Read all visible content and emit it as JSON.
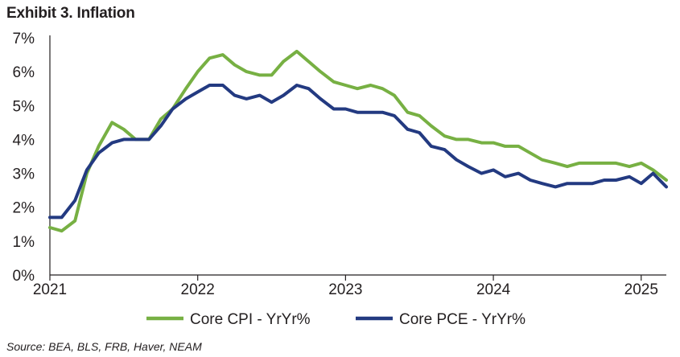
{
  "title": "Exhibit 3. Inflation",
  "source": "Source: BEA, BLS, FRB, Haver, NEAM",
  "chart_data": {
    "type": "line",
    "ylim": [
      0,
      7
    ],
    "yticks": [
      "0%",
      "1%",
      "2%",
      "3%",
      "4%",
      "5%",
      "6%",
      "7%"
    ],
    "xticks": [
      {
        "label": "2021",
        "x": 2021.0
      },
      {
        "label": "2022",
        "x": 2022.0
      },
      {
        "label": "2023",
        "x": 2023.0
      },
      {
        "label": "2024",
        "x": 2024.0
      },
      {
        "label": "2025",
        "x": 2025.0
      }
    ],
    "xlim": [
      2021.0,
      2025.17
    ],
    "legend_position": "bottom",
    "grid": false,
    "series": [
      {
        "name": "Core CPI - YrYr%",
        "color": "#77b043",
        "points": [
          [
            2021.0,
            1.4
          ],
          [
            2021.08,
            1.3
          ],
          [
            2021.17,
            1.6
          ],
          [
            2021.25,
            3.0
          ],
          [
            2021.33,
            3.8
          ],
          [
            2021.42,
            4.5
          ],
          [
            2021.5,
            4.3
          ],
          [
            2021.58,
            4.0
          ],
          [
            2021.67,
            4.0
          ],
          [
            2021.75,
            4.6
          ],
          [
            2021.83,
            4.9
          ],
          [
            2021.92,
            5.5
          ],
          [
            2022.0,
            6.0
          ],
          [
            2022.08,
            6.4
          ],
          [
            2022.17,
            6.5
          ],
          [
            2022.25,
            6.2
          ],
          [
            2022.33,
            6.0
          ],
          [
            2022.42,
            5.9
          ],
          [
            2022.5,
            5.9
          ],
          [
            2022.58,
            6.3
          ],
          [
            2022.67,
            6.6
          ],
          [
            2022.75,
            6.3
          ],
          [
            2022.83,
            6.0
          ],
          [
            2022.92,
            5.7
          ],
          [
            2023.0,
            5.6
          ],
          [
            2023.08,
            5.5
          ],
          [
            2023.17,
            5.6
          ],
          [
            2023.25,
            5.5
          ],
          [
            2023.33,
            5.3
          ],
          [
            2023.42,
            4.8
          ],
          [
            2023.5,
            4.7
          ],
          [
            2023.58,
            4.4
          ],
          [
            2023.67,
            4.1
          ],
          [
            2023.75,
            4.0
          ],
          [
            2023.83,
            4.0
          ],
          [
            2023.92,
            3.9
          ],
          [
            2024.0,
            3.9
          ],
          [
            2024.08,
            3.8
          ],
          [
            2024.17,
            3.8
          ],
          [
            2024.25,
            3.6
          ],
          [
            2024.33,
            3.4
          ],
          [
            2024.42,
            3.3
          ],
          [
            2024.5,
            3.2
          ],
          [
            2024.58,
            3.3
          ],
          [
            2024.67,
            3.3
          ],
          [
            2024.75,
            3.3
          ],
          [
            2024.83,
            3.3
          ],
          [
            2024.92,
            3.2
          ],
          [
            2025.0,
            3.3
          ],
          [
            2025.08,
            3.1
          ],
          [
            2025.17,
            2.8
          ]
        ]
      },
      {
        "name": "Core PCE - YrYr%",
        "color": "#233a81",
        "points": [
          [
            2021.0,
            1.7
          ],
          [
            2021.08,
            1.7
          ],
          [
            2021.17,
            2.2
          ],
          [
            2021.25,
            3.1
          ],
          [
            2021.33,
            3.6
          ],
          [
            2021.42,
            3.9
          ],
          [
            2021.5,
            4.0
          ],
          [
            2021.58,
            4.0
          ],
          [
            2021.67,
            4.0
          ],
          [
            2021.75,
            4.4
          ],
          [
            2021.83,
            4.9
          ],
          [
            2021.92,
            5.2
          ],
          [
            2022.0,
            5.4
          ],
          [
            2022.08,
            5.6
          ],
          [
            2022.17,
            5.6
          ],
          [
            2022.25,
            5.3
          ],
          [
            2022.33,
            5.2
          ],
          [
            2022.42,
            5.3
          ],
          [
            2022.5,
            5.1
          ],
          [
            2022.58,
            5.3
          ],
          [
            2022.67,
            5.6
          ],
          [
            2022.75,
            5.5
          ],
          [
            2022.83,
            5.2
          ],
          [
            2022.92,
            4.9
          ],
          [
            2023.0,
            4.9
          ],
          [
            2023.08,
            4.8
          ],
          [
            2023.17,
            4.8
          ],
          [
            2023.25,
            4.8
          ],
          [
            2023.33,
            4.7
          ],
          [
            2023.42,
            4.3
          ],
          [
            2023.5,
            4.2
          ],
          [
            2023.58,
            3.8
          ],
          [
            2023.67,
            3.7
          ],
          [
            2023.75,
            3.4
          ],
          [
            2023.83,
            3.2
          ],
          [
            2023.92,
            3.0
          ],
          [
            2024.0,
            3.1
          ],
          [
            2024.08,
            2.9
          ],
          [
            2024.17,
            3.0
          ],
          [
            2024.25,
            2.8
          ],
          [
            2024.33,
            2.7
          ],
          [
            2024.42,
            2.6
          ],
          [
            2024.5,
            2.7
          ],
          [
            2024.58,
            2.7
          ],
          [
            2024.67,
            2.7
          ],
          [
            2024.75,
            2.8
          ],
          [
            2024.83,
            2.8
          ],
          [
            2024.92,
            2.9
          ],
          [
            2025.0,
            2.7
          ],
          [
            2025.08,
            3.0
          ],
          [
            2025.17,
            2.6
          ]
        ]
      }
    ]
  }
}
